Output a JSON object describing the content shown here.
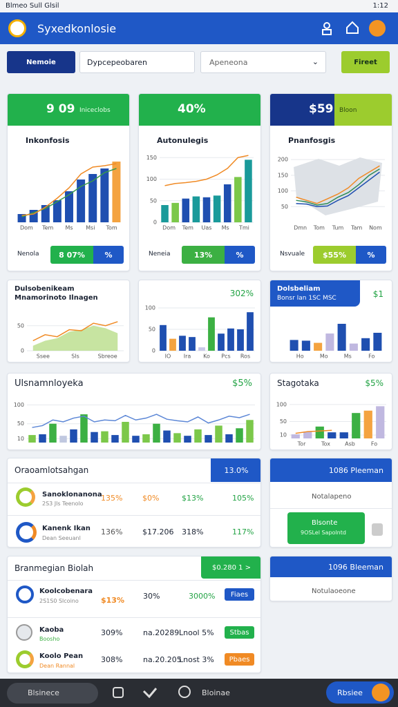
{
  "status_bar": {
    "left": "Blmeo Sull Glsil",
    "time": "1:12"
  },
  "header": {
    "title": "Syxedkonlosie"
  },
  "filters": {
    "button": "Nemoie",
    "search": "Dypcepeobaren",
    "select": "Apeneona",
    "action": "Fireet"
  },
  "top_cards": [
    {
      "kpi": "9 09",
      "kpi_sub": "Iniceclobs",
      "title": "Inkonfosis",
      "chart": {
        "ylim": [
          0,
          100
        ],
        "xlabels": [
          "Dom",
          "Tem",
          "Ms",
          "Msi",
          "Tom"
        ],
        "bars": [
          12,
          18,
          25,
          32,
          45,
          62,
          70,
          78,
          88
        ],
        "bar_colors": [
          "#1f4fb0",
          "#1f4fb0",
          "#1f4fb0",
          "#1f4fb0",
          "#1f4fb0",
          "#1f4fb0",
          "#1f4fb0",
          "#1f4fb0",
          "#f4a340"
        ],
        "lines": [
          {
            "color": "#3a9a4a",
            "values": [
              8,
              14,
              20,
              30,
              40,
              52,
              60,
              72,
              78
            ]
          },
          {
            "color": "#f08a24",
            "values": [
              10,
              12,
              22,
              35,
              50,
              70,
              80,
              82,
              85
            ]
          }
        ]
      },
      "footer_label": "Nenola",
      "pill_value": "8 07%",
      "pill_unit": "%"
    },
    {
      "kpi": "40%",
      "title": "Autonulegis",
      "chart": {
        "ylim": [
          0,
          160
        ],
        "yticks": [
          0,
          50,
          100,
          150
        ],
        "xlabels": [
          "Dom",
          "Tem",
          "Uas",
          "Ms",
          "Tmi"
        ],
        "bars": [
          40,
          45,
          55,
          60,
          58,
          62,
          88,
          105,
          145
        ],
        "bar_colors": [
          "#1a9a9a",
          "#7cc84a",
          "#1f4fb0",
          "#1a9a9a",
          "#1f4fb0",
          "#1a9a9a",
          "#1f4fb0",
          "#7cc84a",
          "#1a9a9a"
        ],
        "lines": [
          {
            "color": "#f08a24",
            "values": [
              85,
              90,
              92,
              95,
              100,
              110,
              125,
              150,
              155
            ]
          }
        ]
      },
      "footer_label": "Neneia",
      "pill_value": "13%",
      "pill_unit": "%"
    },
    {
      "kpi": "$59",
      "kpi_sub": "Bloon",
      "title": "Pnanfosgis",
      "chart": {
        "ylim": [
          0,
          220
        ],
        "yticks": [
          50,
          100,
          150,
          200
        ],
        "xlabels": [
          "Dmn",
          "Tom",
          "Tum",
          "Tam",
          "Nom"
        ],
        "map": true,
        "lines": [
          {
            "color": "#2e8b57",
            "values": [
              70,
              65,
              55,
              60,
              80,
              95,
              120,
              150,
              170
            ]
          },
          {
            "color": "#f08a24",
            "values": [
              80,
              70,
              60,
              75,
              90,
              110,
              140,
              160,
              180
            ]
          },
          {
            "color": "#1f4fb0",
            "values": [
              60,
              58,
              50,
              52,
              70,
              85,
              110,
              135,
              160
            ]
          }
        ]
      },
      "footer_label": "Nsvuale",
      "pill_value": "$55%",
      "pill_unit": "%"
    }
  ],
  "mid_cards": [
    {
      "title_lines": [
        "Dulsobenikeam",
        "Mnamorinoto Ilnagen"
      ],
      "chart": {
        "ylim": [
          0,
          80
        ],
        "yticks": [
          0,
          50
        ],
        "xlabels": [
          "Ssee",
          "Sls",
          "Sbreoe"
        ],
        "areas": [
          {
            "color": "#b9dd8a",
            "values": [
              10,
              20,
              25,
              38,
              42,
              50,
              45,
              35
            ]
          }
        ],
        "lines": [
          {
            "color": "#f08a24",
            "values": [
              20,
              32,
              28,
              42,
              40,
              55,
              50,
              58
            ]
          }
        ]
      }
    },
    {
      "value": "302%",
      "chart": {
        "ylim": [
          0,
          100
        ],
        "yticks": [
          0,
          50,
          100
        ],
        "xlabels": [
          "IO",
          "Ira",
          "Ko",
          "Pcs",
          "Ros"
        ],
        "bars": [
          60,
          28,
          35,
          32,
          8,
          78,
          40,
          52,
          50,
          90
        ],
        "bar_colors": [
          "#1f4fb0",
          "#f4a340",
          "#1f4fb0",
          "#1f4fb0",
          "#c8c8e8",
          "#3cb043",
          "#1f4fb0",
          "#1f4fb0",
          "#1f4fb0",
          "#1f4fb0"
        ]
      }
    },
    {
      "title": "Dolsbeliam",
      "subtitle": "Bonsr Ian 1SC MSC",
      "value": "$1",
      "chart": {
        "ylim": [
          0,
          100
        ],
        "xlabels": [
          "Ho",
          "Mo",
          "Ms",
          "Fo"
        ],
        "bars": [
          30,
          28,
          22,
          48,
          75,
          20,
          35,
          50
        ],
        "bar_colors": [
          "#1f4fb0",
          "#1f4fb0",
          "#f4a340",
          "#c0b8e0",
          "#1f4fb0",
          "#c0b8e0",
          "#1f4fb0",
          "#1f4fb0"
        ]
      }
    }
  ],
  "wide_cards": [
    {
      "title": "Ulsnamnloyeka",
      "value": "$5%",
      "chart": {
        "ylim": [
          0,
          110
        ],
        "yticks": [
          10,
          50,
          100
        ],
        "bars": [
          20,
          22,
          50,
          18,
          35,
          75,
          28,
          30,
          20,
          55,
          18,
          22,
          50,
          32,
          25,
          18,
          35,
          20,
          45,
          22,
          38,
          60
        ],
        "bar_colors": [
          "#7cc84a",
          "#1f4fb0",
          "#3cb043",
          "#c0c8e0",
          "#1f4fb0",
          "#3cb043",
          "#1f4fb0",
          "#7cc84a",
          "#1f4fb0",
          "#7cc84a",
          "#1f4fb0",
          "#7cc84a",
          "#3cb043",
          "#1f4fb0",
          "#7cc84a",
          "#1f4fb0",
          "#7cc84a",
          "#1f4fb0",
          "#7cc84a",
          "#1f4fb0",
          "#3cb043",
          "#7cc84a"
        ],
        "lines": [
          {
            "color": "#5b86d6",
            "values": [
              40,
              45,
              60,
              55,
              65,
              70,
              55,
              60,
              58,
              72,
              60,
              65,
              75,
              62,
              58,
              55,
              68,
              52,
              60,
              70,
              66,
              75
            ]
          }
        ]
      }
    },
    {
      "title": "Stagotaka",
      "value": "$5%",
      "chart": {
        "ylim": [
          0,
          110
        ],
        "yticks": [
          10,
          50,
          100
        ],
        "xlabels": [
          "Tor",
          "Tox",
          "Asb",
          "Fo"
        ],
        "bars": [
          12,
          20,
          35,
          18,
          18,
          75,
          82,
          95
        ],
        "bar_colors": [
          "#c0b8e0",
          "#c0b8e0",
          "#3cb043",
          "#1f4fb0",
          "#1f4fb0",
          "#3cb043",
          "#f4a340",
          "#c0b8e0"
        ],
        "lines": [
          {
            "color": "#f08a24",
            "values": [
              15,
              20,
              22,
              24
            ]
          }
        ]
      }
    }
  ],
  "list_cards": [
    {
      "title": "Oraoamlotsahgan",
      "badge": "13.0%",
      "rows": [
        {
          "name": "Sanoklonanona",
          "sub": "2S3 Jls Teenolo",
          "v1": "135%",
          "v2": "$0%",
          "v3": "$13%",
          "v4": "105%"
        },
        {
          "name": "Kanenk Ikan",
          "sub": "Dean Seeuanl",
          "v1": "136%",
          "v2": "$17.206",
          "v3": "318%",
          "v4": "117%"
        }
      ]
    },
    {
      "title": "Branmegian Biolah",
      "badge": "$0.280 1 >",
      "rows": [
        {
          "name": "Koolcobenara",
          "sub": "2S1S0 Slcoino",
          "v1": "$13%",
          "v2": "30%",
          "v3": "3000%",
          "action": "Fiaes"
        },
        {
          "name": "Kaoba",
          "sub": "Boosho",
          "v1": "309%",
          "v2": "na.20289",
          "v3": "Lnool 5%",
          "action": "Stbas"
        },
        {
          "name": "Koolo Pean",
          "sub": "Dean Rannal",
          "v1": "308%",
          "v2": "na.20.205",
          "v3": "Lnost 3%",
          "action": "Pbaes"
        }
      ]
    }
  ],
  "side_cards": [
    {
      "title": "1086 Pleeman",
      "row": "Notalapeno",
      "button_title": "Blsonte",
      "button_sub": "9OSLel Sapolntd"
    },
    {
      "title": "1096 Bleeman",
      "row": "Notulaoeone"
    }
  ],
  "nav": {
    "search": "Blsinece",
    "item": "Bloinae",
    "action": "Rbsiee"
  }
}
